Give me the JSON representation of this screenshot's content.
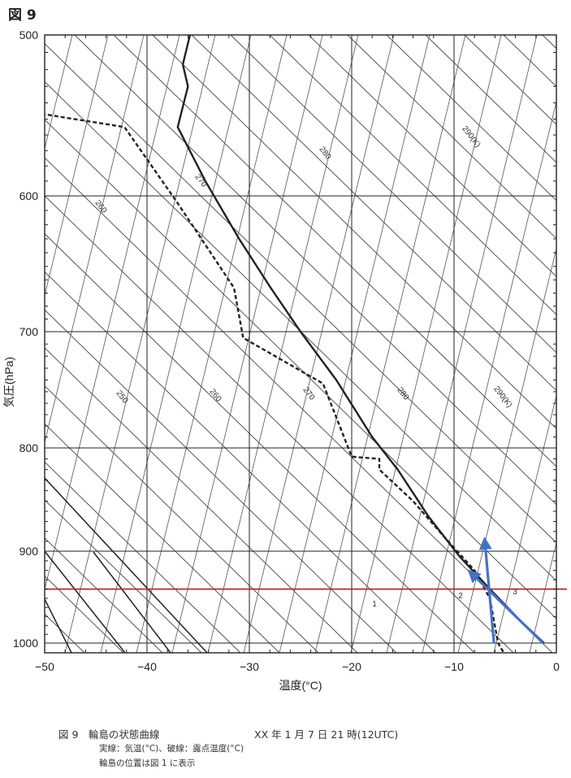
{
  "figure_label": "図 9",
  "caption": {
    "title": "図 9　輪島の状態曲線",
    "time": "XX 年 1 月 7 日 21 時(12UTC)",
    "note1": "実線：気温(°C)、破線：露点温度(°C)",
    "note2": "輪島の位置は図 1 に表示"
  },
  "chart_data": {
    "type": "line",
    "title": "",
    "xlabel": "温度(°C)",
    "ylabel": "気圧(hPa)",
    "xlim": [
      -50,
      0
    ],
    "ylim": [
      1000,
      500
    ],
    "y_scale": "log",
    "x_ticks": [
      -50,
      -40,
      -30,
      -20,
      -10,
      0
    ],
    "y_ticks": [
      500,
      600,
      700,
      800,
      900,
      1000
    ],
    "grid": true,
    "series": [
      {
        "name": "",
        "style": "solid",
        "color": "#222222",
        "points": [
          [
            -1.2,
            1000
          ],
          [
            -3.5,
            975
          ],
          [
            -6.5,
            940
          ],
          [
            -9.5,
            905
          ],
          [
            -12.5,
            865
          ],
          [
            -15.5,
            820
          ],
          [
            -18,
            790
          ],
          [
            -21.5,
            740
          ],
          [
            -25,
            700
          ],
          [
            -28,
            665
          ],
          [
            -31,
            630
          ],
          [
            -34.3,
            590
          ],
          [
            -37,
            555
          ],
          [
            -36,
            530
          ],
          [
            -36.5,
            517
          ],
          [
            -35.8,
            500
          ]
        ]
      },
      {
        "name": "",
        "style": "dashed",
        "color": "#222222",
        "points": [
          [
            -5.2,
            1010
          ],
          [
            -5.7,
            1000
          ],
          [
            -6.5,
            950
          ],
          [
            -8,
            920
          ],
          [
            -11,
            885
          ],
          [
            -14,
            850
          ],
          [
            -17.3,
            820
          ],
          [
            -17.3,
            810
          ],
          [
            -20,
            808
          ],
          [
            -22.8,
            743
          ],
          [
            -30.6,
            705
          ],
          [
            -31.5,
            666
          ],
          [
            -37,
            605
          ],
          [
            -42.2,
            555
          ],
          [
            -50,
            547
          ]
        ]
      }
    ],
    "isotherm_slant_labels": [
      "1",
      "2",
      "3"
    ],
    "potential_temperature_labels": [
      {
        "text": "290(K)"
      },
      {
        "text": "280"
      },
      {
        "text": "270"
      },
      {
        "text": "260"
      },
      {
        "text": "290(K)"
      },
      {
        "text": "280"
      },
      {
        "text": "270"
      },
      {
        "text": "260"
      },
      {
        "text": "250"
      }
    ],
    "annotations": [
      {
        "type": "horizontal_line",
        "pressure": 940,
        "color": "#cc2222"
      },
      {
        "type": "arrow",
        "color": "#4472c4",
        "from": [
          -1.3,
          1000
        ],
        "to": [
          -8.4,
          922
        ]
      },
      {
        "type": "arrow",
        "color": "#4472c4",
        "from": [
          -6.1,
          1000
        ],
        "to": [
          -7,
          889
        ]
      }
    ]
  }
}
